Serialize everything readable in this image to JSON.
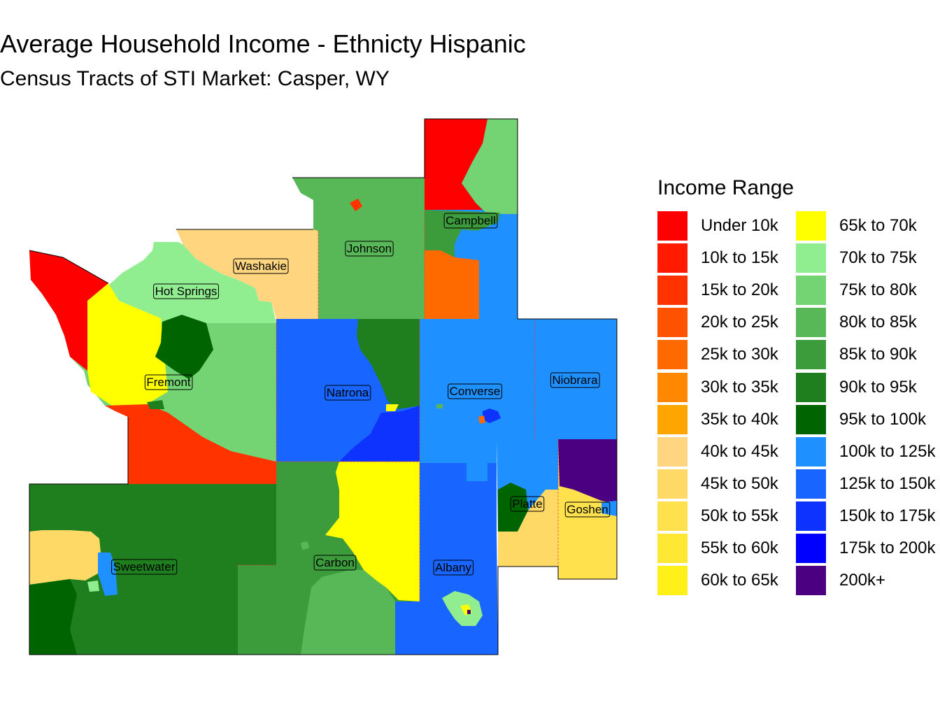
{
  "title": "Average Household Income - Ethnicty Hispanic",
  "subtitle": "Census Tracts of STI Market: Casper, WY",
  "legend": {
    "title": "Income Range",
    "items": [
      {
        "label": "Under 10k",
        "color": "#ff0000"
      },
      {
        "label": "10k to 15k",
        "color": "#ff1a00"
      },
      {
        "label": "15k to 20k",
        "color": "#ff3300"
      },
      {
        "label": "20k to 25k",
        "color": "#ff5200"
      },
      {
        "label": "25k to 30k",
        "color": "#ff6a00"
      },
      {
        "label": "30k to 35k",
        "color": "#ff8800"
      },
      {
        "label": "35k to 40k",
        "color": "#ffa500"
      },
      {
        "label": "40k to 45k",
        "color": "#ffd580"
      },
      {
        "label": "45k to 50k",
        "color": "#ffd966"
      },
      {
        "label": "50k to 55k",
        "color": "#ffe04d"
      },
      {
        "label": "55k to 60k",
        "color": "#ffe833"
      },
      {
        "label": "60k to 65k",
        "color": "#fff01a"
      },
      {
        "label": "65k to 70k",
        "color": "#ffff00"
      },
      {
        "label": "70k to 75k",
        "color": "#90ee90"
      },
      {
        "label": "75k to 80k",
        "color": "#74d474"
      },
      {
        "label": "80k to 85k",
        "color": "#58b858"
      },
      {
        "label": "85k to 90k",
        "color": "#3c9c3c"
      },
      {
        "label": "90k to 95k",
        "color": "#1f7f1f"
      },
      {
        "label": "95k to 100k",
        "color": "#006400"
      },
      {
        "label": "100k to 125k",
        "color": "#1e90ff"
      },
      {
        "label": "125k to 150k",
        "color": "#1866ff"
      },
      {
        "label": "150k to 175k",
        "color": "#0f33ff"
      },
      {
        "label": "175k to 200k",
        "color": "#0000ff"
      },
      {
        "label": "200k+",
        "color": "#4b0082"
      }
    ]
  },
  "counties": [
    "Campbell",
    "Johnson",
    "Washakie",
    "Hot Springs",
    "Fremont",
    "Natrona",
    "Converse",
    "Niobrara",
    "Platte",
    "Goshen",
    "Sweetwater",
    "Carbon",
    "Albany"
  ]
}
